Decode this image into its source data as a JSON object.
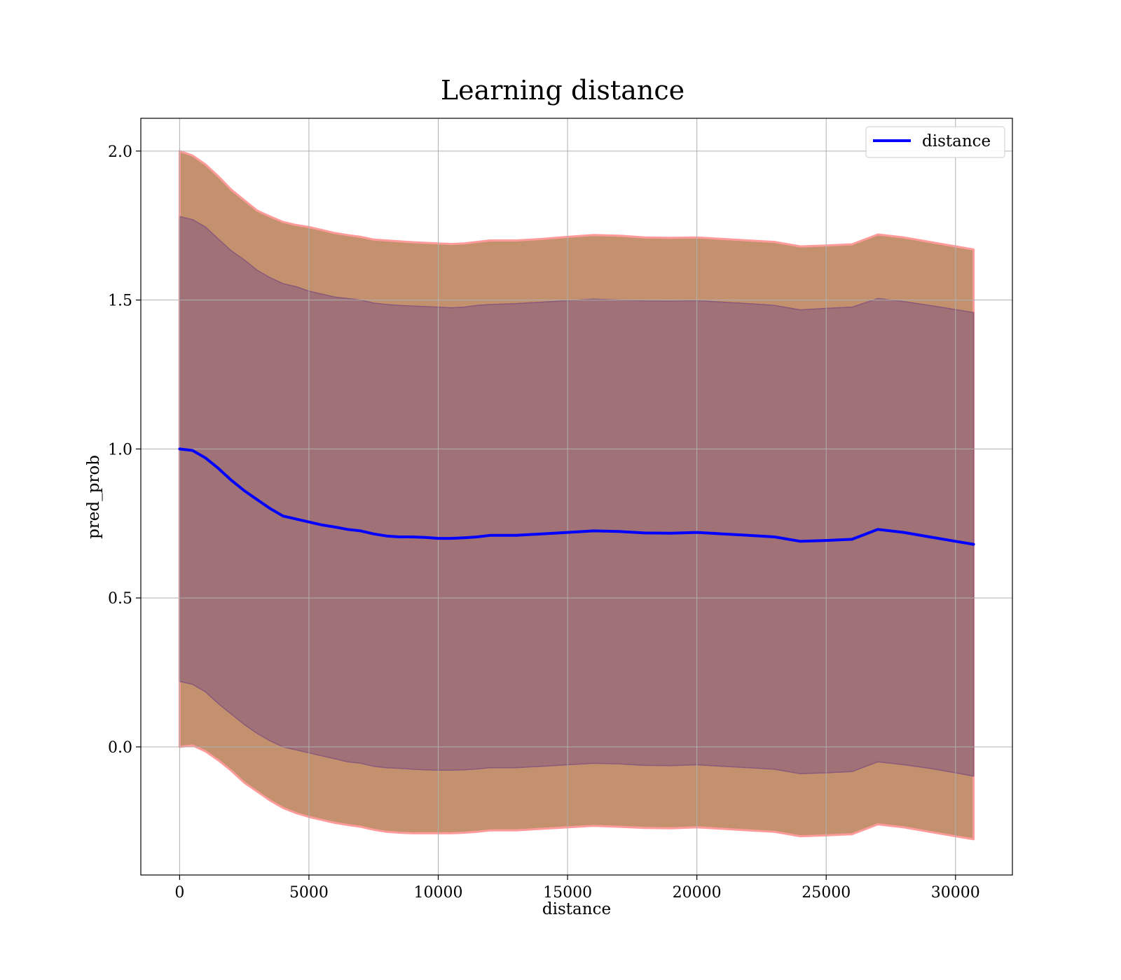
{
  "chart_data": {
    "type": "line",
    "title": "Learning distance",
    "xlabel": "distance",
    "ylabel": "pred_prob",
    "xlim": [
      -1500,
      32200
    ],
    "ylim": [
      -0.43,
      2.11
    ],
    "xticks": [
      0,
      5000,
      10000,
      15000,
      20000,
      25000,
      30000
    ],
    "yticks": [
      0.0,
      0.5,
      1.0,
      1.5,
      2.0
    ],
    "xtick_labels": [
      "0",
      "5000",
      "10000",
      "15000",
      "20000",
      "25000",
      "30000"
    ],
    "ytick_labels": [
      "0.0",
      "0.5",
      "1.0",
      "1.5",
      "2.0"
    ],
    "grid": true,
    "legend": {
      "position": "top-right",
      "entries": [
        "distance"
      ]
    },
    "series": [
      {
        "name": "distance",
        "color": "#0000ff",
        "x": [
          0,
          500,
          1000,
          1500,
          2000,
          2500,
          3000,
          3500,
          4000,
          4500,
          5000,
          5500,
          6000,
          6500,
          7000,
          7500,
          8000,
          8500,
          9000,
          9500,
          10000,
          10500,
          11000,
          11500,
          12000,
          13000,
          14000,
          15000,
          16000,
          17000,
          18000,
          19000,
          20000,
          21000,
          22000,
          23000,
          24000,
          25000,
          26000,
          27000,
          28000,
          29000,
          30000,
          30700
        ],
        "y": [
          1.0,
          0.995,
          0.97,
          0.935,
          0.895,
          0.86,
          0.83,
          0.8,
          0.775,
          0.765,
          0.755,
          0.745,
          0.738,
          0.73,
          0.725,
          0.715,
          0.708,
          0.705,
          0.705,
          0.703,
          0.7,
          0.7,
          0.702,
          0.705,
          0.71,
          0.71,
          0.715,
          0.72,
          0.725,
          0.723,
          0.718,
          0.717,
          0.72,
          0.715,
          0.71,
          0.705,
          0.69,
          0.693,
          0.697,
          0.73,
          0.72,
          0.705,
          0.69,
          0.68
        ]
      }
    ],
    "bands": [
      {
        "kind": "outer",
        "fill": "#c4916f",
        "edge": "#ff9a9a",
        "x": [
          0,
          500,
          1000,
          1500,
          2000,
          2500,
          3000,
          3500,
          4000,
          4500,
          5000,
          5500,
          6000,
          6500,
          7000,
          7500,
          8000,
          8500,
          9000,
          9500,
          10000,
          10500,
          11000,
          11500,
          12000,
          13000,
          14000,
          15000,
          16000,
          17000,
          18000,
          19000,
          20000,
          21000,
          22000,
          23000,
          24000,
          25000,
          26000,
          27000,
          28000,
          29000,
          30000,
          30700
        ],
        "upper": [
          2.0,
          1.985,
          1.955,
          1.915,
          1.87,
          1.835,
          1.8,
          1.78,
          1.762,
          1.752,
          1.745,
          1.735,
          1.725,
          1.718,
          1.712,
          1.703,
          1.7,
          1.697,
          1.694,
          1.692,
          1.69,
          1.688,
          1.69,
          1.695,
          1.7,
          1.7,
          1.705,
          1.712,
          1.718,
          1.716,
          1.71,
          1.709,
          1.71,
          1.705,
          1.7,
          1.695,
          1.68,
          1.683,
          1.687,
          1.72,
          1.71,
          1.695,
          1.68,
          1.67
        ],
        "lower": [
          0.0,
          0.005,
          -0.015,
          -0.045,
          -0.08,
          -0.12,
          -0.15,
          -0.18,
          -0.205,
          -0.222,
          -0.235,
          -0.245,
          -0.255,
          -0.262,
          -0.268,
          -0.278,
          -0.285,
          -0.288,
          -0.29,
          -0.29,
          -0.29,
          -0.29,
          -0.288,
          -0.285,
          -0.28,
          -0.28,
          -0.275,
          -0.27,
          -0.265,
          -0.268,
          -0.272,
          -0.273,
          -0.27,
          -0.275,
          -0.28,
          -0.285,
          -0.3,
          -0.297,
          -0.293,
          -0.26,
          -0.27,
          -0.285,
          -0.3,
          -0.31
        ]
      },
      {
        "kind": "inner",
        "fill": "#a07177",
        "edge": "#8a5a7a",
        "x": [
          0,
          500,
          1000,
          1500,
          2000,
          2500,
          3000,
          3500,
          4000,
          4500,
          5000,
          5500,
          6000,
          6500,
          7000,
          7500,
          8000,
          8500,
          9000,
          9500,
          10000,
          10500,
          11000,
          11500,
          12000,
          13000,
          14000,
          15000,
          16000,
          17000,
          18000,
          19000,
          20000,
          21000,
          22000,
          23000,
          24000,
          25000,
          26000,
          27000,
          28000,
          29000,
          30000,
          30700
        ],
        "upper": [
          1.78,
          1.77,
          1.745,
          1.705,
          1.665,
          1.635,
          1.6,
          1.575,
          1.555,
          1.545,
          1.53,
          1.52,
          1.51,
          1.505,
          1.5,
          1.49,
          1.485,
          1.482,
          1.48,
          1.478,
          1.476,
          1.474,
          1.476,
          1.482,
          1.485,
          1.488,
          1.493,
          1.498,
          1.503,
          1.5,
          1.497,
          1.496,
          1.498,
          1.493,
          1.488,
          1.482,
          1.467,
          1.472,
          1.476,
          1.505,
          1.495,
          1.482,
          1.468,
          1.458
        ],
        "lower": [
          0.22,
          0.21,
          0.185,
          0.145,
          0.11,
          0.075,
          0.045,
          0.02,
          0.0,
          -0.01,
          -0.02,
          -0.03,
          -0.04,
          -0.05,
          -0.055,
          -0.065,
          -0.07,
          -0.072,
          -0.075,
          -0.077,
          -0.078,
          -0.078,
          -0.077,
          -0.074,
          -0.07,
          -0.07,
          -0.065,
          -0.06,
          -0.055,
          -0.057,
          -0.062,
          -0.063,
          -0.06,
          -0.065,
          -0.07,
          -0.075,
          -0.09,
          -0.087,
          -0.083,
          -0.05,
          -0.06,
          -0.072,
          -0.087,
          -0.098
        ]
      }
    ]
  }
}
